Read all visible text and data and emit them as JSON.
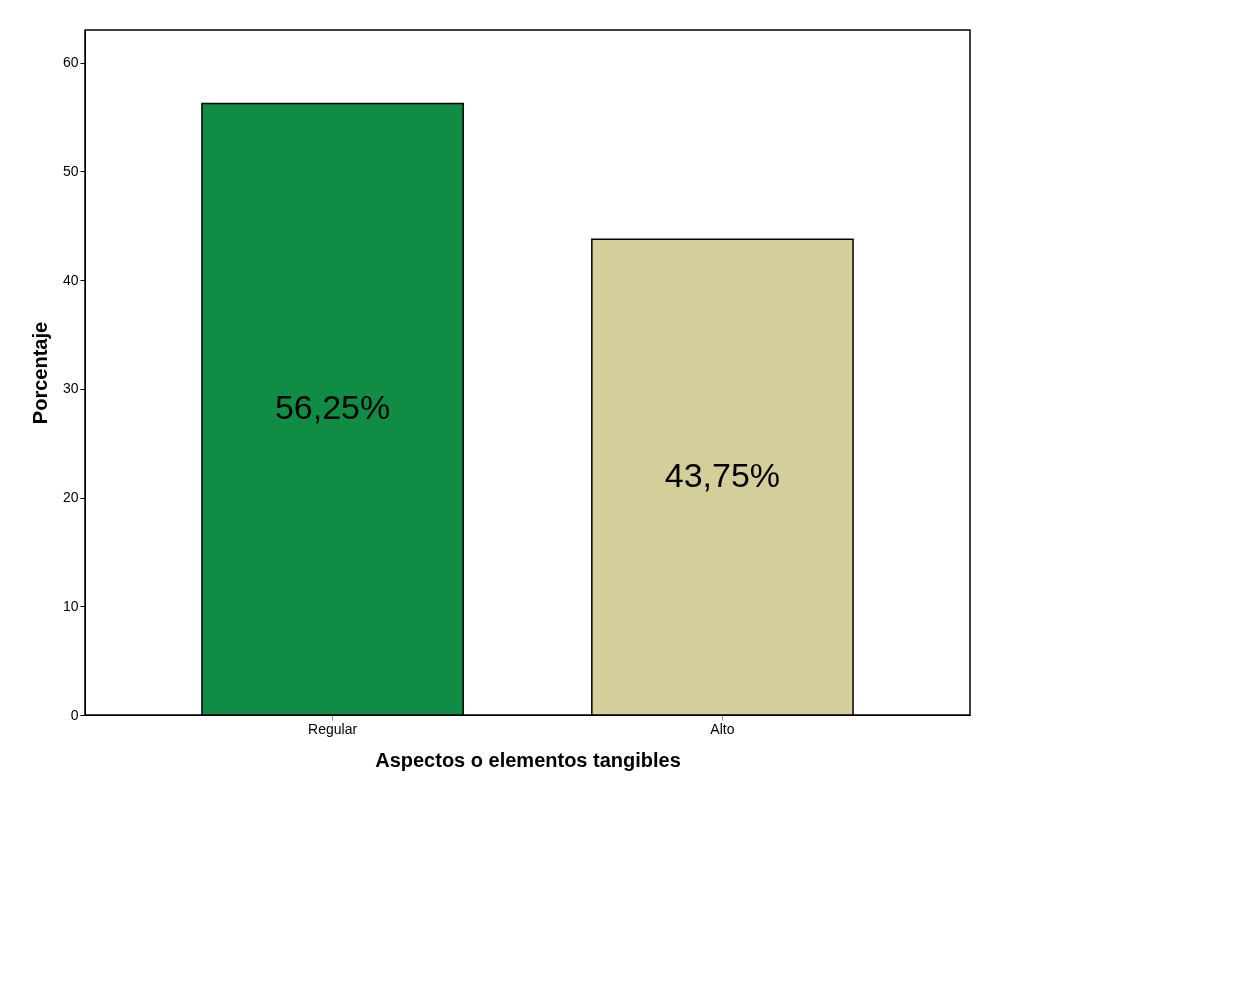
{
  "chart_data": {
    "type": "bar",
    "xlabel": "Aspectos o elementos tangibles",
    "ylabel": "Porcentaje",
    "categories": [
      "Regular",
      "Alto"
    ],
    "values": [
      56.25,
      43.75
    ],
    "colors": [
      "#118c45",
      "#d4cf9a"
    ],
    "value_labels": [
      "56,25%",
      "43,75%"
    ],
    "ylim": [
      0,
      63
    ],
    "yticks": [
      0,
      10,
      20,
      30,
      40,
      50,
      60
    ],
    "grid": false
  }
}
